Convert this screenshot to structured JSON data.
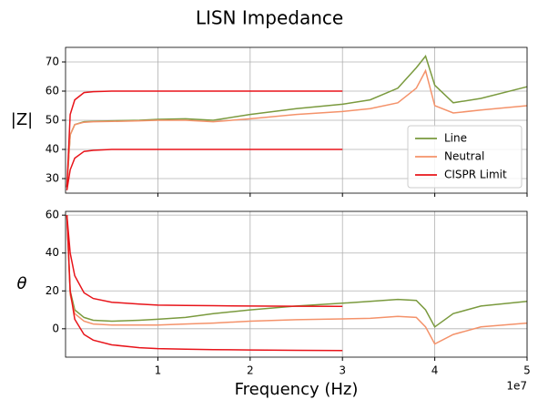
{
  "chart_data": [
    {
      "type": "line",
      "title": "LISN Impedance",
      "ylabel": "|Z|",
      "x": [
        150000,
        500000,
        1000000,
        2000000,
        3000000,
        5000000,
        8000000,
        10000000,
        13000000,
        16000000,
        20000000,
        25000000,
        30000000,
        33000000,
        36000000,
        38000000,
        39000000,
        40000000,
        42000000,
        45000000,
        50000000
      ],
      "xlim": [
        0,
        50000000
      ],
      "xticks": [
        10000000,
        20000000,
        30000000,
        40000000,
        50000000
      ],
      "ylim": [
        25,
        75
      ],
      "yticks": [
        30,
        40,
        50,
        60,
        70
      ],
      "grid": true,
      "legend": "lower right",
      "series": [
        {
          "name": "Line",
          "color": "#7a9a3e",
          "values": [
            27,
            45,
            48.5,
            49.5,
            49.6,
            49.8,
            50,
            50.3,
            50.5,
            50,
            52,
            54,
            55.5,
            57,
            61,
            68,
            72,
            62,
            56,
            57.5,
            61.5
          ]
        },
        {
          "name": "Neutral",
          "color": "#f4926a",
          "values": [
            27,
            45,
            48.5,
            49.3,
            49.5,
            49.6,
            49.8,
            50,
            50,
            49.5,
            50.5,
            52,
            53,
            54,
            56,
            61,
            67,
            55,
            52.5,
            53.5,
            55
          ]
        },
        {
          "name": "CISPR Limit",
          "color": "#e8141a",
          "values": [
            27,
            52,
            57,
            59.5,
            59.8,
            60,
            60,
            60,
            60,
            60,
            60,
            60,
            60,
            null,
            null,
            null,
            null,
            null,
            null,
            null,
            null
          ]
        },
        {
          "color": "#e8141a",
          "values": [
            26,
            33,
            37,
            39.3,
            39.7,
            40,
            40,
            40,
            40,
            40,
            40,
            40,
            40,
            null,
            null,
            null,
            null,
            null,
            null,
            null,
            null
          ]
        }
      ]
    },
    {
      "type": "line",
      "ylabel": "θ",
      "xlabel": "Frequency (Hz)",
      "x_offset_label": "1e7",
      "x": [
        150000,
        500000,
        1000000,
        2000000,
        3000000,
        5000000,
        8000000,
        10000000,
        13000000,
        16000000,
        20000000,
        25000000,
        30000000,
        33000000,
        36000000,
        38000000,
        39000000,
        40000000,
        42000000,
        45000000,
        50000000
      ],
      "xlim": [
        0,
        50000000
      ],
      "xticks": [
        {
          "value": 10000000,
          "label": "1"
        },
        {
          "value": 20000000,
          "label": "2"
        },
        {
          "value": 30000000,
          "label": "3"
        },
        {
          "value": 40000000,
          "label": "4"
        },
        {
          "value": 50000000,
          "label": "5"
        }
      ],
      "ylim": [
        -15,
        62
      ],
      "yticks": [
        0,
        20,
        40,
        60
      ],
      "grid": true,
      "series": [
        {
          "name": "Line",
          "color": "#7a9a3e",
          "values": [
            60,
            20,
            10,
            6,
            4.5,
            4,
            4.5,
            5,
            6,
            8,
            10,
            12,
            13.5,
            14.5,
            15.5,
            15,
            10,
            1,
            8,
            12,
            14.5
          ]
        },
        {
          "name": "Neutral",
          "color": "#f4926a",
          "values": [
            60,
            18,
            8,
            4,
            2.5,
            2,
            2,
            2,
            2.5,
            3,
            4,
            4.8,
            5.2,
            5.5,
            6.5,
            6,
            1,
            -8,
            -3,
            1,
            3
          ]
        },
        {
          "name": "CISPR Limit",
          "color": "#e8141a",
          "values": [
            60,
            40,
            28,
            19,
            16,
            14,
            13,
            12.5,
            12.3,
            12.2,
            12,
            11.9,
            11.8,
            null,
            null,
            null,
            null,
            null,
            null,
            null,
            null
          ]
        },
        {
          "color": "#e8141a",
          "values": [
            60,
            20,
            5,
            -3,
            -6,
            -8.5,
            -10,
            -10.5,
            -10.8,
            -11,
            -11.2,
            -11.4,
            -11.5,
            null,
            null,
            null,
            null,
            null,
            null,
            null,
            null
          ]
        }
      ]
    }
  ]
}
